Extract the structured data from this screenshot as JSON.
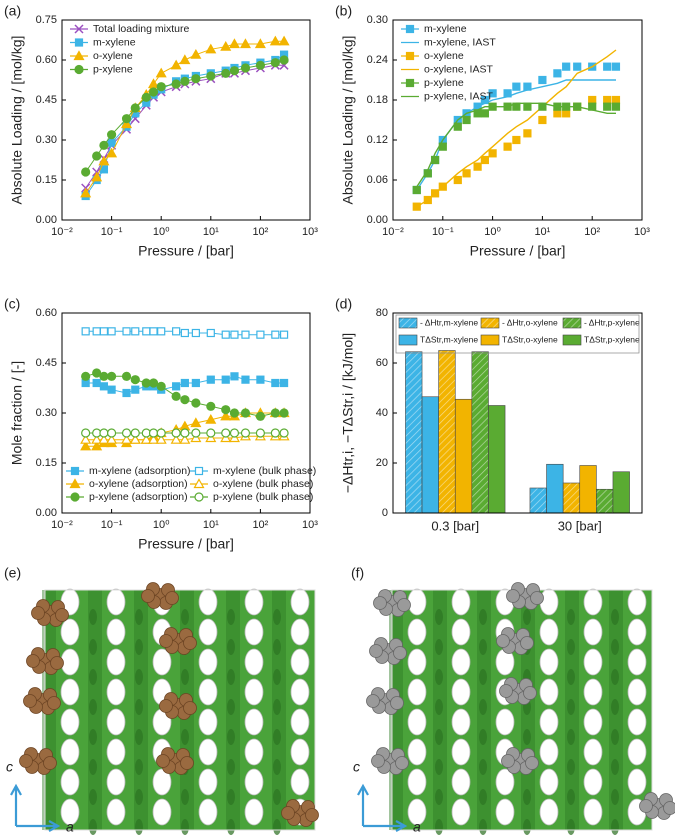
{
  "chart_data": [
    {
      "type": "line",
      "label": "(a)",
      "xlabel": "Pressure / [bar]",
      "ylabel": "Absolute Loading / [mol/kg]",
      "log_x": true,
      "xlim": [
        0.01,
        1000
      ],
      "xticks": [
        {
          "value": 0.01,
          "label": "10⁻²"
        },
        {
          "value": 0.1,
          "label": "10⁻¹"
        },
        {
          "value": 1,
          "label": "10⁰"
        },
        {
          "value": 10,
          "label": "10¹"
        },
        {
          "value": 100,
          "label": "10²"
        },
        {
          "value": 1000,
          "label": "10³"
        }
      ],
      "ylim": [
        0,
        0.75
      ],
      "yticks": [
        {
          "value": 0,
          "label": "0.00"
        },
        0.15,
        {
          "value": 0.3,
          "label": "0.30"
        },
        0.45,
        {
          "value": 0.6,
          "label": "0.60"
        },
        0.75
      ],
      "legend": "upper left",
      "legend_columns": 1,
      "x": [
        0.03,
        0.05,
        0.07,
        0.1,
        0.2,
        0.3,
        0.5,
        0.7,
        1,
        2,
        3,
        5,
        10,
        20,
        30,
        50,
        100,
        200,
        300
      ],
      "series": [
        {
          "name": "Total loading mixture",
          "color": "#9b4fc0",
          "marker": "x",
          "filled": true,
          "line": true,
          "values": [
            0.12,
            0.18,
            0.23,
            0.28,
            0.34,
            0.38,
            0.43,
            0.46,
            0.48,
            0.5,
            0.51,
            0.52,
            0.53,
            0.55,
            0.55,
            0.56,
            0.57,
            0.58,
            0.58
          ]
        },
        {
          "name": "m-xylene",
          "color": "#3cb4e6",
          "marker": "square",
          "filled": true,
          "line": true,
          "values": [
            0.09,
            0.15,
            0.19,
            0.29,
            0.35,
            0.4,
            0.44,
            0.47,
            0.49,
            0.52,
            0.53,
            0.54,
            0.55,
            0.56,
            0.57,
            0.58,
            0.59,
            0.6,
            0.62
          ]
        },
        {
          "name": "o-xylene",
          "color": "#f2b400",
          "marker": "triangle",
          "filled": true,
          "line": true,
          "values": [
            0.1,
            0.16,
            0.22,
            0.25,
            0.36,
            0.42,
            0.47,
            0.51,
            0.55,
            0.58,
            0.6,
            0.62,
            0.64,
            0.65,
            0.66,
            0.66,
            0.66,
            0.67,
            0.67
          ]
        },
        {
          "name": "p-xylene",
          "color": "#5aab32",
          "marker": "circle",
          "filled": true,
          "line": true,
          "values": [
            0.18,
            0.24,
            0.28,
            0.32,
            0.38,
            0.42,
            0.46,
            0.48,
            0.5,
            0.51,
            0.52,
            0.53,
            0.54,
            0.55,
            0.56,
            0.57,
            0.58,
            0.59,
            0.6
          ]
        }
      ]
    },
    {
      "type": "line",
      "label": "(b)",
      "xlabel": "Pressure / [bar]",
      "ylabel": "Absolute Loading / [mol/kg]",
      "log_x": true,
      "xlim": [
        0.01,
        1000
      ],
      "xticks": [
        {
          "value": 0.01,
          "label": "10⁻²"
        },
        {
          "value": 0.1,
          "label": "10⁻¹"
        },
        {
          "value": 1,
          "label": "10⁰"
        },
        {
          "value": 10,
          "label": "10¹"
        },
        {
          "value": 100,
          "label": "10²"
        },
        {
          "value": 1000,
          "label": "10³"
        }
      ],
      "ylim": [
        0,
        0.3
      ],
      "yticks": [
        {
          "value": 0,
          "label": "0.00"
        },
        0.06,
        0.12,
        0.18,
        0.24,
        {
          "value": 0.3,
          "label": "0.30"
        }
      ],
      "legend": "upper left",
      "legend_columns": 1,
      "x": [
        0.03,
        0.05,
        0.07,
        0.1,
        0.2,
        0.3,
        0.5,
        0.7,
        1,
        2,
        3,
        5,
        10,
        20,
        30,
        50,
        100,
        200,
        300
      ],
      "series": [
        {
          "name": "m-xylene",
          "color": "#3cb4e6",
          "marker": "square",
          "filled": true,
          "line": false,
          "values": [
            0.045,
            0.07,
            0.09,
            0.12,
            0.15,
            0.16,
            0.17,
            0.18,
            0.19,
            0.19,
            0.2,
            0.2,
            0.21,
            0.22,
            0.23,
            0.23,
            0.23,
            0.23,
            0.23
          ]
        },
        {
          "name": "m-xylene, IAST",
          "color": "#3cb4e6",
          "marker": "none",
          "filled": true,
          "line": true,
          "values": [
            0.045,
            0.07,
            0.09,
            0.12,
            0.15,
            0.16,
            0.17,
            0.175,
            0.18,
            0.185,
            0.19,
            0.195,
            0.2,
            0.205,
            0.21,
            0.21,
            0.21,
            0.21,
            0.21
          ]
        },
        {
          "name": "o-xylene",
          "color": "#f2b400",
          "marker": "square",
          "filled": true,
          "line": false,
          "values": [
            0.02,
            0.03,
            0.04,
            0.05,
            0.06,
            0.07,
            0.08,
            0.09,
            0.1,
            0.11,
            0.12,
            0.13,
            0.15,
            0.16,
            0.16,
            0.17,
            0.18,
            0.18,
            0.18
          ]
        },
        {
          "name": "o-xylene, IAST",
          "color": "#f2b400",
          "marker": "none",
          "filled": true,
          "line": true,
          "values": [
            0.02,
            0.03,
            0.04,
            0.05,
            0.07,
            0.08,
            0.09,
            0.1,
            0.11,
            0.13,
            0.14,
            0.15,
            0.17,
            0.19,
            0.2,
            0.22,
            0.23,
            0.245,
            0.255
          ]
        },
        {
          "name": "p-xylene",
          "color": "#5aab32",
          "marker": "square",
          "filled": true,
          "line": false,
          "values": [
            0.045,
            0.07,
            0.09,
            0.11,
            0.14,
            0.15,
            0.16,
            0.16,
            0.17,
            0.17,
            0.17,
            0.17,
            0.17,
            0.17,
            0.17,
            0.17,
            0.17,
            0.17,
            0.17
          ]
        },
        {
          "name": "p-xylene, IAST",
          "color": "#5aab32",
          "marker": "none",
          "filled": true,
          "line": true,
          "values": [
            0.05,
            0.075,
            0.1,
            0.12,
            0.15,
            0.16,
            0.165,
            0.17,
            0.17,
            0.17,
            0.175,
            0.175,
            0.175,
            0.17,
            0.17,
            0.17,
            0.165,
            0.16,
            0.16
          ]
        }
      ]
    },
    {
      "type": "line",
      "label": "(c)",
      "xlabel": "Pressure / [bar]",
      "ylabel": "Mole fraction / [-]",
      "log_x": true,
      "xlim": [
        0.01,
        1000
      ],
      "xticks": [
        {
          "value": 0.01,
          "label": "10⁻²"
        },
        {
          "value": 0.1,
          "label": "10⁻¹"
        },
        {
          "value": 1,
          "label": "10⁰"
        },
        {
          "value": 10,
          "label": "10¹"
        },
        {
          "value": 100,
          "label": "10²"
        },
        {
          "value": 1000,
          "label": "10³"
        }
      ],
      "ylim": [
        0,
        0.6
      ],
      "yticks": [
        {
          "value": 0,
          "label": "0.00"
        },
        0.15,
        {
          "value": 0.3,
          "label": "0.30"
        },
        0.45,
        {
          "value": 0.6,
          "label": "0.60"
        }
      ],
      "legend": "lower",
      "legend_columns": 2,
      "x": [
        0.03,
        0.05,
        0.07,
        0.1,
        0.2,
        0.3,
        0.5,
        0.7,
        1,
        2,
        3,
        5,
        10,
        20,
        30,
        50,
        100,
        200,
        300
      ],
      "series": [
        {
          "name": "m-xylene (adsorption)",
          "color": "#3cb4e6",
          "marker": "square",
          "filled": true,
          "line": true,
          "values": [
            0.39,
            0.39,
            0.38,
            0.37,
            0.36,
            0.37,
            0.38,
            0.38,
            0.37,
            0.38,
            0.39,
            0.39,
            0.4,
            0.4,
            0.41,
            0.4,
            0.4,
            0.39,
            0.39
          ]
        },
        {
          "name": "m-xylene (bulk phase)",
          "color": "#3cb4e6",
          "marker": "square",
          "filled": false,
          "line": true,
          "values": [
            0.545,
            0.545,
            0.545,
            0.545,
            0.545,
            0.545,
            0.545,
            0.545,
            0.545,
            0.545,
            0.54,
            0.54,
            0.54,
            0.535,
            0.535,
            0.535,
            0.535,
            0.535,
            0.535
          ]
        },
        {
          "name": "o-xylene (adsorption)",
          "color": "#f2b400",
          "marker": "triangle",
          "filled": true,
          "line": true,
          "values": [
            0.2,
            0.2,
            0.21,
            0.21,
            0.21,
            0.22,
            0.22,
            0.23,
            0.24,
            0.25,
            0.26,
            0.27,
            0.28,
            0.29,
            0.29,
            0.3,
            0.3,
            0.3,
            0.3
          ]
        },
        {
          "name": "o-xylene (bulk phase)",
          "color": "#f2b400",
          "marker": "triangle",
          "filled": false,
          "line": true,
          "values": [
            0.22,
            0.22,
            0.22,
            0.22,
            0.22,
            0.22,
            0.22,
            0.22,
            0.22,
            0.22,
            0.22,
            0.225,
            0.225,
            0.225,
            0.225,
            0.23,
            0.23,
            0.23,
            0.23
          ]
        },
        {
          "name": "p-xylene (adsorption)",
          "color": "#5aab32",
          "marker": "circle",
          "filled": true,
          "line": true,
          "values": [
            0.41,
            0.42,
            0.41,
            0.41,
            0.41,
            0.4,
            0.39,
            0.39,
            0.38,
            0.35,
            0.34,
            0.33,
            0.32,
            0.31,
            0.3,
            0.3,
            0.29,
            0.3,
            0.3
          ]
        },
        {
          "name": "p-xylene (bulk phase)",
          "color": "#5aab32",
          "marker": "circle",
          "filled": false,
          "line": true,
          "values": [
            0.24,
            0.24,
            0.24,
            0.24,
            0.24,
            0.24,
            0.24,
            0.24,
            0.24,
            0.24,
            0.24,
            0.24,
            0.24,
            0.24,
            0.24,
            0.24,
            0.24,
            0.24,
            0.24
          ]
        }
      ]
    },
    {
      "type": "bar",
      "label": "(d)",
      "ylabel": "−ΔHtr,i, −TΔStr,i / [kJ/mol]",
      "ylim": [
        0,
        80
      ],
      "yticks": [
        0,
        20,
        40,
        60,
        80
      ],
      "legend": "upper",
      "legend_columns": 3,
      "categories": [
        "0.3 [bar]",
        "30 [bar]"
      ],
      "series": [
        {
          "name": "- ΔHtr,m-xylene",
          "color": "#3cb4e6",
          "hatch": true,
          "values": [
            64.5,
            10
          ]
        },
        {
          "name": "TΔStr,m-xylene",
          "color": "#3cb4e6",
          "hatch": false,
          "values": [
            46.5,
            19.5
          ]
        },
        {
          "name": "- ΔHtr,o-xylene",
          "color": "#f2b400",
          "hatch": true,
          "values": [
            65,
            12
          ]
        },
        {
          "name": "TΔStr,o-xylene",
          "color": "#f2b400",
          "hatch": false,
          "values": [
            45.5,
            19
          ]
        },
        {
          "name": "- ΔHtr,p-xylene",
          "color": "#5aab32",
          "hatch": true,
          "values": [
            64.5,
            9.5
          ]
        },
        {
          "name": "TΔStr,p-xylene",
          "color": "#5aab32",
          "hatch": false,
          "values": [
            43,
            16.5
          ]
        }
      ]
    }
  ],
  "panels": [
    {
      "label": "(e)",
      "axis_vertical": "c",
      "axis_horizontal": "a"
    },
    {
      "label": "(f)",
      "axis_vertical": "c",
      "axis_horizontal": "a"
    }
  ]
}
